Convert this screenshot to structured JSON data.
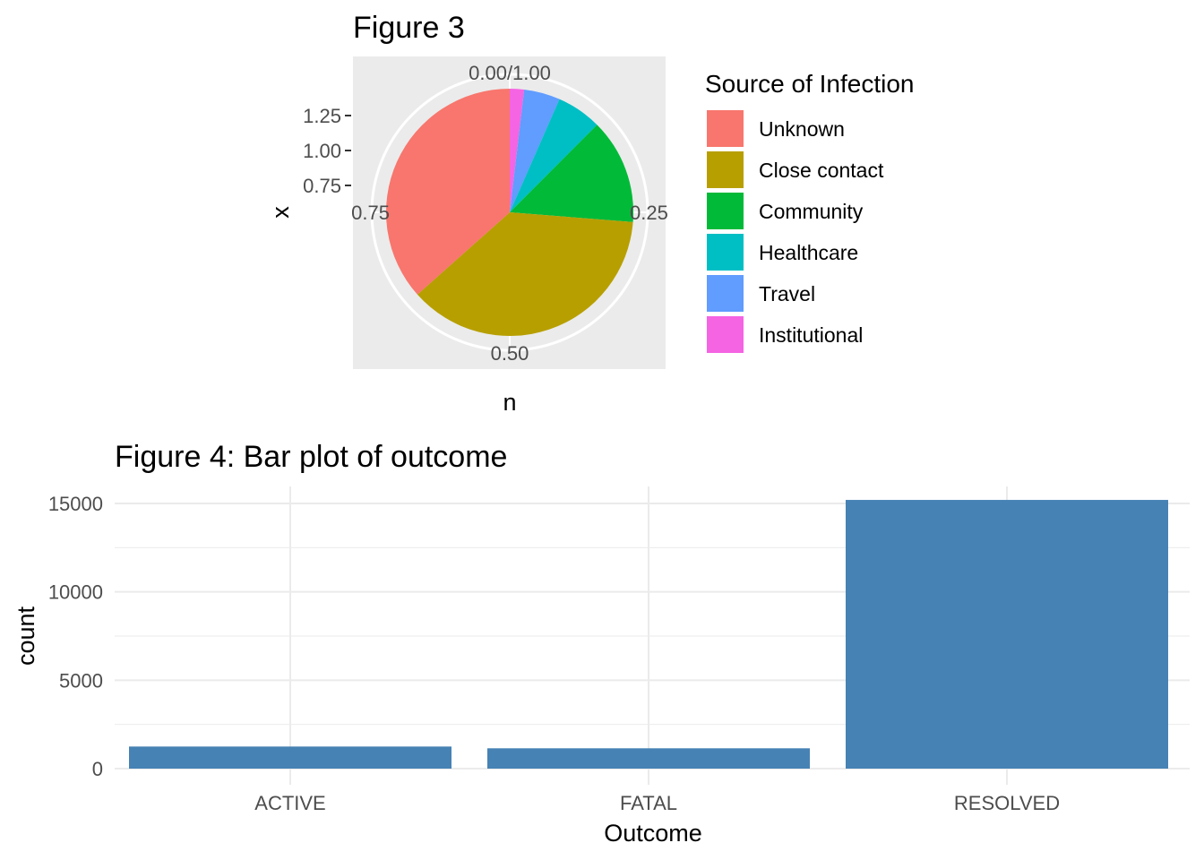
{
  "chart_data": [
    {
      "type": "pie",
      "title": "Figure 3",
      "xlabel": "n",
      "ylabel": "x",
      "y_ticks": [
        "1.25",
        "1.00",
        "0.75"
      ],
      "angle_ticks": [
        "0.00/1.00",
        "0.25",
        "0.50",
        "0.75"
      ],
      "legend_title": "Source of Infection",
      "legend_position": "right",
      "grid": true,
      "categories": [
        "Unknown",
        "Close contact",
        "Community",
        "Healthcare",
        "Travel",
        "Institutional"
      ],
      "values": [
        0.372,
        0.378,
        0.14,
        0.06,
        0.048,
        0.019
      ],
      "colors": [
        "#F8766D",
        "#B79F00",
        "#00BA38",
        "#00BFC4",
        "#619CFF",
        "#F564E3"
      ]
    },
    {
      "type": "bar",
      "title": "Figure 4: Bar plot of outcome",
      "xlabel": "Outcome",
      "ylabel": "count",
      "categories": [
        "ACTIVE",
        "FATAL",
        "RESOLVED"
      ],
      "values": [
        1250,
        1150,
        15200
      ],
      "ylim": [
        0,
        16000
      ],
      "y_ticks": [
        "0",
        "5000",
        "10000",
        "15000"
      ],
      "grid": true,
      "bar_color": "#4682B4"
    }
  ]
}
